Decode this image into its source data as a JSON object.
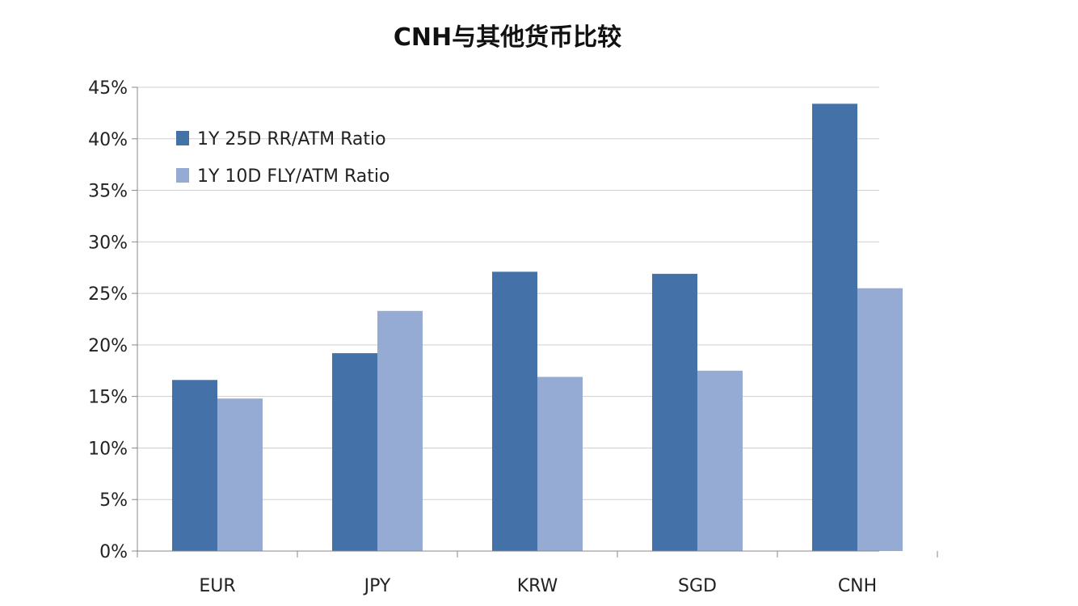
{
  "chart_data": {
    "type": "bar",
    "title": "CNH与其他货币比较",
    "xlabel": "",
    "ylabel": "",
    "categories": [
      "EUR",
      "JPY",
      "KRW",
      "SGD",
      "CNH"
    ],
    "series": [
      {
        "name": "1Y 25D RR/ATM Ratio",
        "color": "#4472a8",
        "values": [
          16.6,
          19.2,
          27.1,
          26.9,
          43.4
        ]
      },
      {
        "name": "1Y 10D FLY/ATM Ratio",
        "color": "#95abd4",
        "values": [
          14.8,
          23.3,
          16.9,
          17.5,
          25.5
        ]
      }
    ],
    "ylim": [
      0,
      45
    ],
    "yticks": [
      "0%",
      "5%",
      "10%",
      "15%",
      "20%",
      "25%",
      "30%",
      "35%",
      "40%",
      "45%"
    ],
    "grid": true,
    "legend_position": "top-left"
  }
}
